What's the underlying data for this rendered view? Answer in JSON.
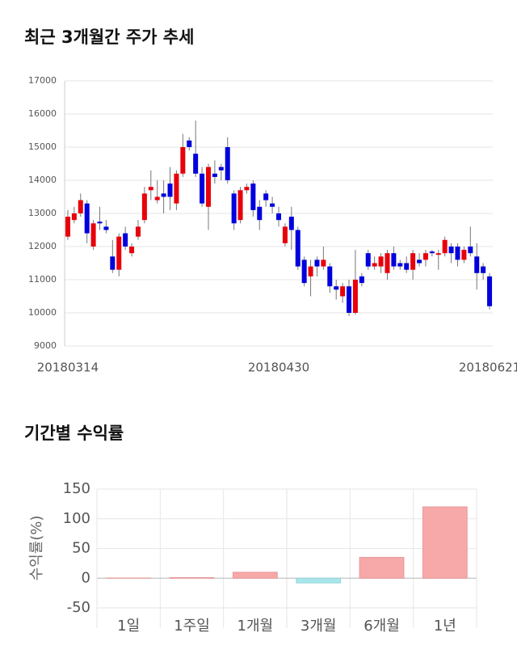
{
  "chart_data": [
    {
      "type": "candlestick",
      "title": "최근 3개월간 주가 추세",
      "categories": [
        "20180314",
        null,
        null,
        null,
        null,
        null,
        null,
        null,
        null,
        null,
        null,
        null,
        null,
        null,
        null,
        null,
        null,
        null,
        null,
        null,
        null,
        null,
        null,
        null,
        null,
        null,
        null,
        null,
        null,
        null,
        null,
        null,
        null,
        "20180430",
        null,
        null,
        null,
        null,
        null,
        null,
        null,
        null,
        null,
        null,
        null,
        null,
        null,
        null,
        null,
        null,
        null,
        null,
        null,
        null,
        null,
        null,
        null,
        null,
        null,
        null,
        null,
        null,
        null,
        null,
        null,
        null,
        "20180621"
      ],
      "open": [
        12300,
        12800,
        13000,
        13300,
        12000,
        12750,
        12600,
        11700,
        11300,
        12400,
        11800,
        12300,
        12800,
        13700,
        13400,
        13600,
        13900,
        13300,
        14200,
        15200,
        14800,
        14200,
        13200,
        14200,
        14400,
        15000,
        13600,
        12800,
        13700,
        13900,
        13200,
        13600,
        13300,
        13000,
        12100,
        12900,
        12500,
        11600,
        11100,
        11600,
        11400,
        11400,
        10800,
        10500,
        10800,
        10000,
        11100,
        11800,
        11400,
        11400,
        11200,
        11800,
        11500,
        11500,
        11300,
        11600,
        11600,
        11850,
        11750,
        11800,
        12000,
        12000,
        11600,
        12000,
        11700,
        11400,
        11100
      ],
      "high": [
        13100,
        13200,
        13600,
        13400,
        12800,
        13200,
        12800,
        12200,
        12400,
        12600,
        12100,
        12800,
        13800,
        14300,
        14000,
        14000,
        14400,
        14300,
        15400,
        15300,
        15800,
        14400,
        14500,
        14600,
        14500,
        15300,
        13700,
        13800,
        13900,
        14000,
        13400,
        13700,
        13500,
        13200,
        12700,
        13200,
        12600,
        11700,
        11600,
        11700,
        12000,
        11500,
        11000,
        10900,
        11000,
        11900,
        11200,
        11900,
        11700,
        11800,
        11900,
        12000,
        11600,
        11700,
        11900,
        11800,
        11900,
        11900,
        11900,
        12300,
        12100,
        12100,
        12000,
        12600,
        12100,
        11500,
        11200
      ],
      "low": [
        12200,
        12700,
        12900,
        12100,
        11900,
        12500,
        12400,
        11200,
        11100,
        11900,
        11700,
        12200,
        12700,
        13400,
        13300,
        13000,
        13100,
        13100,
        14100,
        14900,
        14100,
        13200,
        12500,
        13900,
        14000,
        13900,
        12500,
        12700,
        13600,
        12900,
        12500,
        13200,
        13000,
        12600,
        12000,
        11900,
        11300,
        10800,
        10500,
        11100,
        11300,
        10600,
        10400,
        10300,
        9900,
        9950,
        10800,
        11300,
        11300,
        11200,
        11000,
        11300,
        11300,
        11200,
        11000,
        11400,
        11400,
        11700,
        11300,
        11700,
        11500,
        11400,
        11500,
        11700,
        10700,
        11000,
        10100
      ],
      "close": [
        12900,
        13000,
        13400,
        12400,
        12700,
        12700,
        12500,
        11300,
        12300,
        12000,
        12000,
        12600,
        13600,
        13800,
        13500,
        13500,
        13500,
        14200,
        15000,
        15000,
        14200,
        13300,
        14400,
        14100,
        14300,
        14000,
        12700,
        13700,
        13800,
        13100,
        12800,
        13400,
        13200,
        12800,
        12600,
        12500,
        11400,
        10900,
        11400,
        11400,
        11600,
        10800,
        10700,
        10800,
        10000,
        11000,
        10900,
        11400,
        11500,
        11700,
        11800,
        11400,
        11400,
        11300,
        11800,
        11500,
        11800,
        11800,
        11800,
        12200,
        11800,
        11600,
        11900,
        11800,
        11200,
        11200,
        10200
      ],
      "up_color": "#e8000b",
      "down_color": "#0000dd",
      "ylim": [
        9000,
        17000
      ],
      "yticks": [
        9000,
        10000,
        11000,
        12000,
        13000,
        14000,
        15000,
        16000,
        17000
      ],
      "grid": true
    },
    {
      "type": "bar",
      "title": "기간별 수익률",
      "y_label": "수익률(%)",
      "categories": [
        "1일",
        "1주일",
        "1개월",
        "3개월",
        "6개월",
        "1년"
      ],
      "values": [
        0.3,
        1,
        10,
        -8,
        35,
        120
      ],
      "positive_color": "#f7a8a8",
      "negative_color": "#a8e6ea",
      "ylim": [
        -50,
        150
      ],
      "yticks": [
        -50,
        0,
        50,
        100,
        150
      ],
      "grid": true
    }
  ]
}
